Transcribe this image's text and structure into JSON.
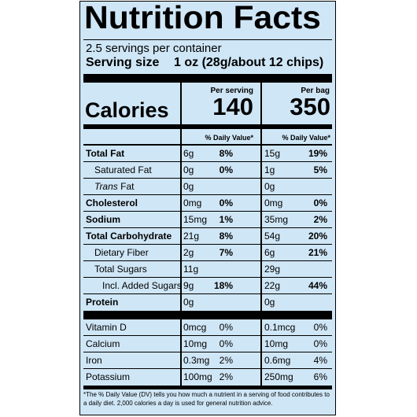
{
  "label": {
    "title": "Nutrition Facts",
    "servings_text": "2.5 servings per container",
    "serving_size_label": "Serving size",
    "serving_size_value": "1 oz (28g/about 12 chips)",
    "per_serving_label": "Per serving",
    "per_bag_label": "Per bag",
    "calories_label": "Calories",
    "calories_serving": "140",
    "calories_bag": "350",
    "dv_header": "% Daily Value*",
    "rows": [
      {
        "name": "Total Fat",
        "a1": "6g",
        "p1": "8%",
        "a2": "15g",
        "p2": "19%"
      },
      {
        "name": "Saturated Fat",
        "a1": "0g",
        "p1": "0%",
        "a2": "1g",
        "p2": "5%"
      },
      {
        "name_italic": "Trans",
        "name_rest": " Fat",
        "a1": "0g",
        "p1": "",
        "a2": "0g",
        "p2": ""
      },
      {
        "name": "Cholesterol",
        "a1": "0mg",
        "p1": "0%",
        "a2": "0mg",
        "p2": "0%"
      },
      {
        "name": "Sodium",
        "a1": "15mg",
        "p1": "1%",
        "a2": "35mg",
        "p2": "2%"
      },
      {
        "name": "Total Carbohydrate",
        "a1": "21g",
        "p1": "8%",
        "a2": "54g",
        "p2": "20%"
      },
      {
        "name": "Dietary Fiber",
        "a1": "2g",
        "p1": "7%",
        "a2": "6g",
        "p2": "21%"
      },
      {
        "name": "Total Sugars",
        "a1": "11g",
        "p1": "",
        "a2": "29g",
        "p2": ""
      },
      {
        "name": "Incl. Added Sugars",
        "a1": "9g",
        "p1": "18%",
        "a2": "22g",
        "p2": "44%"
      },
      {
        "name": "Protein",
        "a1": "0g",
        "p1": "",
        "a2": "0g",
        "p2": ""
      }
    ],
    "vitamins": [
      {
        "name": "Vitamin D",
        "a1": "0mcg",
        "p1": "0%",
        "a2": "0.1mcg",
        "p2": "0%"
      },
      {
        "name": "Calcium",
        "a1": "10mg",
        "p1": "0%",
        "a2": "10mg",
        "p2": "0%"
      },
      {
        "name": "Iron",
        "a1": "0.3mg",
        "p1": "2%",
        "a2": "0.6mg",
        "p2": "4%"
      },
      {
        "name": "Potassium",
        "a1": "100mg",
        "p1": "2%",
        "a2": "250mg",
        "p2": "6%"
      }
    ],
    "footnote": "*The % Daily Value (DV) tells you how much a nutrient in a serving of food contributes to a daily diet. 2,000 calories a day is used for general nutrition advice."
  }
}
